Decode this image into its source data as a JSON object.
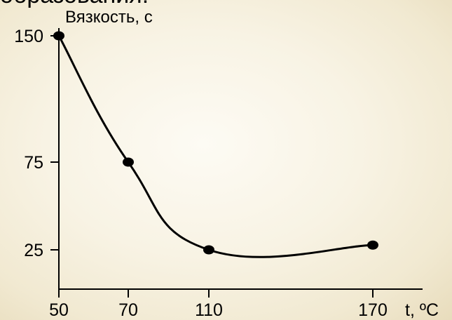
{
  "header": {
    "text": "образования:"
  },
  "chart_data": {
    "type": "line",
    "title": "",
    "ylabel": "Вязкость, с",
    "xlabel": "t, ºС",
    "x_categories": [
      "50",
      "70",
      "110",
      "170"
    ],
    "y_ticks": [
      150,
      75,
      25
    ],
    "ylim": [
      0,
      150
    ],
    "grid": false,
    "series": [
      {
        "values": [
          {
            "x": "50",
            "y": 150
          },
          {
            "x": "70",
            "y": 75
          },
          {
            "x": "110",
            "y": 25
          },
          {
            "x": "170",
            "y": 22
          }
        ]
      }
    ],
    "colors": {
      "line": "#000000",
      "marker": "#000000",
      "axis": "#000000"
    }
  }
}
